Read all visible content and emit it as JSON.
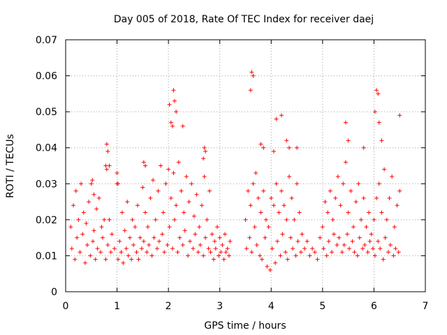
{
  "chart_data": {
    "type": "scatter",
    "title": "Day 005 of 2018, Rate Of TEC Index for receiver daej",
    "xlabel": "GPS time / hours",
    "ylabel": "ROTI / TECUs",
    "xlim": [
      0,
      7
    ],
    "ylim": [
      0,
      0.07
    ],
    "xticks": [
      0,
      1,
      2,
      3,
      4,
      5,
      6,
      7
    ],
    "yticks": [
      0,
      0.01,
      0.02,
      0.03,
      0.04,
      0.05,
      0.06,
      0.07
    ],
    "xtick_labels": [
      "0",
      "1",
      "2",
      "3",
      "4",
      "5",
      "6",
      "7"
    ],
    "ytick_labels": [
      "0",
      "0.01",
      "0.02",
      "0.03",
      "0.04",
      "0.05",
      "0.06",
      "0.07"
    ],
    "grid": true,
    "marker": "+",
    "color": "#ff0000",
    "series": [
      {
        "name": "ROTI",
        "x": [
          0.1,
          0.12,
          0.15,
          0.18,
          0.2,
          0.22,
          0.25,
          0.28,
          0.3,
          0.33,
          0.35,
          0.38,
          0.4,
          0.42,
          0.45,
          0.48,
          0.5,
          0.53,
          0.55,
          0.58,
          0.6,
          0.62,
          0.65,
          0.68,
          0.7,
          0.72,
          0.75,
          0.78,
          0.8,
          0.82,
          0.85,
          0.88,
          0.9,
          0.95,
          1.0,
          1.02,
          1.05,
          1.08,
          1.1,
          1.12,
          1.15,
          1.18,
          1.2,
          1.22,
          1.25,
          1.28,
          1.3,
          1.32,
          1.35,
          1.38,
          1.4,
          1.42,
          1.45,
          1.48,
          1.5,
          1.52,
          1.55,
          1.58,
          1.6,
          1.62,
          1.65,
          1.68,
          1.7,
          1.72,
          1.75,
          1.78,
          1.8,
          1.82,
          1.85,
          1.88,
          1.9,
          1.92,
          1.95,
          1.98,
          2.0,
          2.02,
          2.05,
          2.08,
          2.1,
          2.12,
          2.15,
          2.18,
          2.2,
          2.22,
          2.25,
          2.28,
          2.3,
          2.32,
          2.35,
          2.38,
          2.4,
          2.42,
          2.45,
          2.48,
          2.5,
          2.52,
          2.55,
          2.58,
          2.6,
          2.62,
          2.65,
          2.68,
          2.7,
          2.72,
          2.75,
          2.78,
          2.8,
          2.82,
          2.85,
          2.88,
          2.9,
          2.92,
          2.95,
          2.98,
          3.0,
          3.02,
          3.05,
          3.08,
          3.1,
          3.12,
          3.15,
          3.18,
          3.2,
          3.5,
          3.52,
          3.55,
          3.58,
          3.6,
          3.62,
          3.65,
          3.68,
          3.7,
          3.72,
          3.75,
          3.78,
          3.8,
          3.82,
          3.85,
          3.88,
          3.9,
          3.92,
          3.95,
          3.98,
          4.0,
          4.02,
          4.05,
          4.08,
          4.1,
          4.12,
          4.15,
          4.18,
          4.2,
          4.22,
          4.25,
          4.28,
          4.3,
          4.32,
          4.35,
          4.38,
          4.4,
          4.42,
          4.45,
          4.48,
          4.5,
          4.52,
          4.55,
          4.58,
          4.6,
          4.65,
          4.7,
          4.75,
          4.8,
          4.85,
          4.9,
          4.95,
          5.0,
          5.02,
          5.05,
          5.08,
          5.1,
          5.12,
          5.15,
          5.18,
          5.2,
          5.22,
          5.25,
          5.28,
          5.3,
          5.32,
          5.35,
          5.38,
          5.4,
          5.42,
          5.45,
          5.48,
          5.5,
          5.52,
          5.55,
          5.58,
          5.6,
          5.62,
          5.65,
          5.68,
          5.7,
          5.72,
          5.75,
          5.78,
          5.8,
          5.82,
          5.85,
          5.88,
          5.9,
          5.92,
          5.95,
          5.98,
          6.0,
          6.02,
          6.05,
          6.08,
          6.1,
          6.12,
          6.15,
          6.18,
          6.2,
          6.22,
          6.25,
          6.28,
          6.3,
          6.32,
          6.35,
          6.38,
          6.4,
          6.42,
          6.45,
          6.48,
          6.5,
          0.8,
          0.82,
          0.78,
          2.1,
          2.12,
          2.15,
          2.05,
          2.08,
          2.02,
          2.28,
          3.62,
          3.65,
          3.6,
          4.1,
          4.2,
          4.3,
          4.35,
          4.5,
          5.45,
          5.5,
          5.8,
          6.05,
          6.08,
          6.02,
          6.1,
          6.15,
          6.5,
          2.7,
          2.72,
          2.68,
          3.8,
          3.85,
          4.05,
          1.0,
          1.02,
          1.52,
          1.55,
          0.85,
          0.52,
          0.55
        ],
        "y": [
          0.018,
          0.012,
          0.024,
          0.009,
          0.028,
          0.015,
          0.02,
          0.011,
          0.03,
          0.016,
          0.022,
          0.008,
          0.019,
          0.013,
          0.025,
          0.01,
          0.03,
          0.014,
          0.017,
          0.009,
          0.023,
          0.012,
          0.026,
          0.011,
          0.018,
          0.015,
          0.02,
          0.009,
          0.034,
          0.013,
          0.02,
          0.011,
          0.016,
          0.012,
          0.03,
          0.009,
          0.014,
          0.011,
          0.022,
          0.008,
          0.017,
          0.012,
          0.025,
          0.01,
          0.015,
          0.009,
          0.02,
          0.013,
          0.018,
          0.011,
          0.024,
          0.009,
          0.015,
          0.012,
          0.029,
          0.014,
          0.022,
          0.011,
          0.018,
          0.013,
          0.026,
          0.01,
          0.031,
          0.015,
          0.02,
          0.012,
          0.028,
          0.014,
          0.035,
          0.016,
          0.022,
          0.011,
          0.03,
          0.013,
          0.034,
          0.018,
          0.026,
          0.012,
          0.033,
          0.02,
          0.024,
          0.011,
          0.036,
          0.015,
          0.028,
          0.013,
          0.022,
          0.017,
          0.032,
          0.01,
          0.025,
          0.014,
          0.03,
          0.012,
          0.021,
          0.016,
          0.027,
          0.011,
          0.018,
          0.013,
          0.024,
          0.01,
          0.032,
          0.015,
          0.02,
          0.012,
          0.028,
          0.011,
          0.016,
          0.009,
          0.014,
          0.012,
          0.018,
          0.01,
          0.015,
          0.011,
          0.013,
          0.009,
          0.016,
          0.011,
          0.012,
          0.01,
          0.014,
          0.02,
          0.012,
          0.028,
          0.015,
          0.024,
          0.011,
          0.03,
          0.018,
          0.033,
          0.013,
          0.026,
          0.01,
          0.022,
          0.009,
          0.028,
          0.015,
          0.02,
          0.007,
          0.018,
          0.006,
          0.026,
          0.012,
          0.024,
          0.008,
          0.03,
          0.014,
          0.022,
          0.01,
          0.028,
          0.016,
          0.024,
          0.011,
          0.02,
          0.009,
          0.032,
          0.015,
          0.026,
          0.012,
          0.02,
          0.01,
          0.03,
          0.014,
          0.022,
          0.011,
          0.016,
          0.012,
          0.014,
          0.01,
          0.012,
          0.011,
          0.009,
          0.015,
          0.018,
          0.012,
          0.025,
          0.01,
          0.022,
          0.014,
          0.028,
          0.011,
          0.02,
          0.016,
          0.026,
          0.013,
          0.032,
          0.015,
          0.024,
          0.011,
          0.03,
          0.013,
          0.036,
          0.016,
          0.022,
          0.012,
          0.028,
          0.014,
          0.018,
          0.011,
          0.025,
          0.01,
          0.03,
          0.015,
          0.02,
          0.012,
          0.026,
          0.013,
          0.018,
          0.011,
          0.022,
          0.014,
          0.016,
          0.012,
          0.02,
          0.01,
          0.026,
          0.014,
          0.03,
          0.012,
          0.022,
          0.009,
          0.034,
          0.015,
          0.02,
          0.011,
          0.026,
          0.013,
          0.032,
          0.01,
          0.018,
          0.012,
          0.024,
          0.011,
          0.028,
          0.041,
          0.039,
          0.035,
          0.056,
          0.053,
          0.05,
          0.047,
          0.046,
          0.052,
          0.046,
          0.061,
          0.06,
          0.056,
          0.048,
          0.049,
          0.042,
          0.04,
          0.04,
          0.047,
          0.042,
          0.04,
          0.056,
          0.055,
          0.05,
          0.047,
          0.042,
          0.049,
          0.04,
          0.039,
          0.037,
          0.041,
          0.04,
          0.039,
          0.033,
          0.03,
          0.036,
          0.035,
          0.035,
          0.031,
          0.027
        ]
      }
    ]
  }
}
